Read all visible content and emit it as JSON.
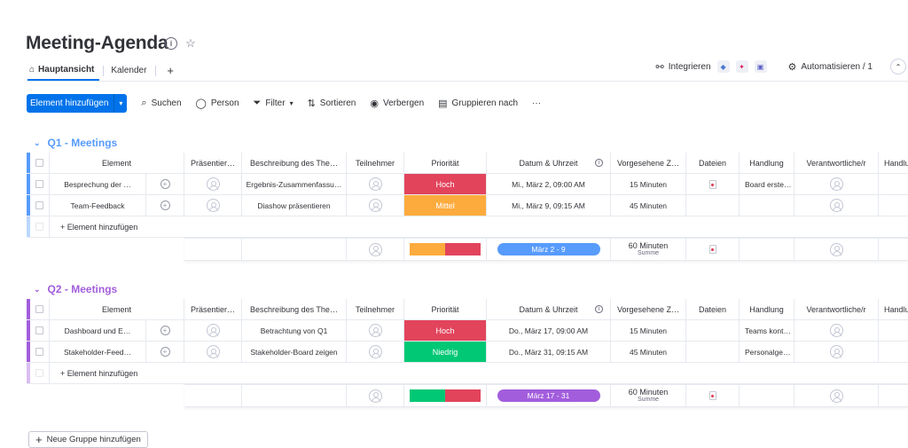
{
  "board": {
    "title": "Meeting-Agenda"
  },
  "tabs": [
    {
      "label": "Hauptansicht"
    },
    {
      "label": "Kalender"
    }
  ],
  "top_right": {
    "integrate_label": "Integrieren",
    "automate_label": "Automatisieren / 1"
  },
  "toolbar": {
    "new_item_label": "Element hinzufügen",
    "search_label": "Suchen",
    "person_label": "Person",
    "filter_label": "Filter",
    "sort_label": "Sortieren",
    "hide_label": "Verbergen",
    "group_label": "Gruppieren nach",
    "more_label": "···"
  },
  "columns": {
    "element": "Element",
    "presenter": "Präsentier…",
    "description": "Beschreibung des The…",
    "participants": "Teilnehmer",
    "priority": "Priorität",
    "datetime": "Datum & Uhrzeit",
    "duration": "Vorgesehene Z…",
    "files": "Dateien",
    "action": "Handlung",
    "responsible": "Verantwortliche/r",
    "action2": "Handlu"
  },
  "groups": [
    {
      "title": "Q1 - Meetings",
      "color": "#579bfc",
      "add_item_label": "+ Element hinzufügen",
      "rows": [
        {
          "name": "Besprechung der …",
          "description": "Ergebnis-Zusammenfassu…",
          "priority": "Hoch",
          "priority_color": "#e2445c",
          "date": "Mi., März 2, 09:00 AM",
          "duration": "15 Minuten",
          "action": "Board erste…"
        },
        {
          "name": "Team-Feedback",
          "description": "Diashow präsentieren",
          "priority": "Mittel",
          "priority_color": "#fdab3d",
          "date": "Mi., März 9, 09:15 AM",
          "duration": "45 Minuten",
          "action": ""
        }
      ],
      "summary": {
        "priority_mix": [
          {
            "color": "#fdab3d",
            "share": 0.5
          },
          {
            "color": "#e2445c",
            "share": 0.5
          }
        ],
        "date_range": "März 2 - 9",
        "date_color": "#579bfc",
        "duration_total": "60 Minuten",
        "duration_caption": "Summe",
        "overflow": "2"
      }
    },
    {
      "title": "Q2 - Meetings",
      "color": "#a25ddc",
      "add_item_label": "+ Element hinzufügen",
      "rows": [
        {
          "name": "Dashboard und E…",
          "description": "Betrachtung von Q1",
          "priority": "Hoch",
          "priority_color": "#e2445c",
          "date": "Do., März 17, 09:00 AM",
          "duration": "15 Minuten",
          "action": "Teams kont…"
        },
        {
          "name": "Stakeholder-Feed…",
          "description": "Stakeholder-Board zeigen",
          "priority": "Niedrig",
          "priority_color": "#00c875",
          "date": "Do., März 31, 09:15 AM",
          "duration": "45 Minuten",
          "action": "Personalge…"
        }
      ],
      "summary": {
        "priority_mix": [
          {
            "color": "#00c875",
            "share": 0.5
          },
          {
            "color": "#e2445c",
            "share": 0.5
          }
        ],
        "date_range": "März 17 - 31",
        "date_color": "#a25ddc",
        "duration_total": "60 Minuten",
        "duration_caption": "Summe",
        "overflow": "2"
      }
    }
  ],
  "footer": {
    "new_group_label": "Neue Gruppe hinzufügen"
  }
}
